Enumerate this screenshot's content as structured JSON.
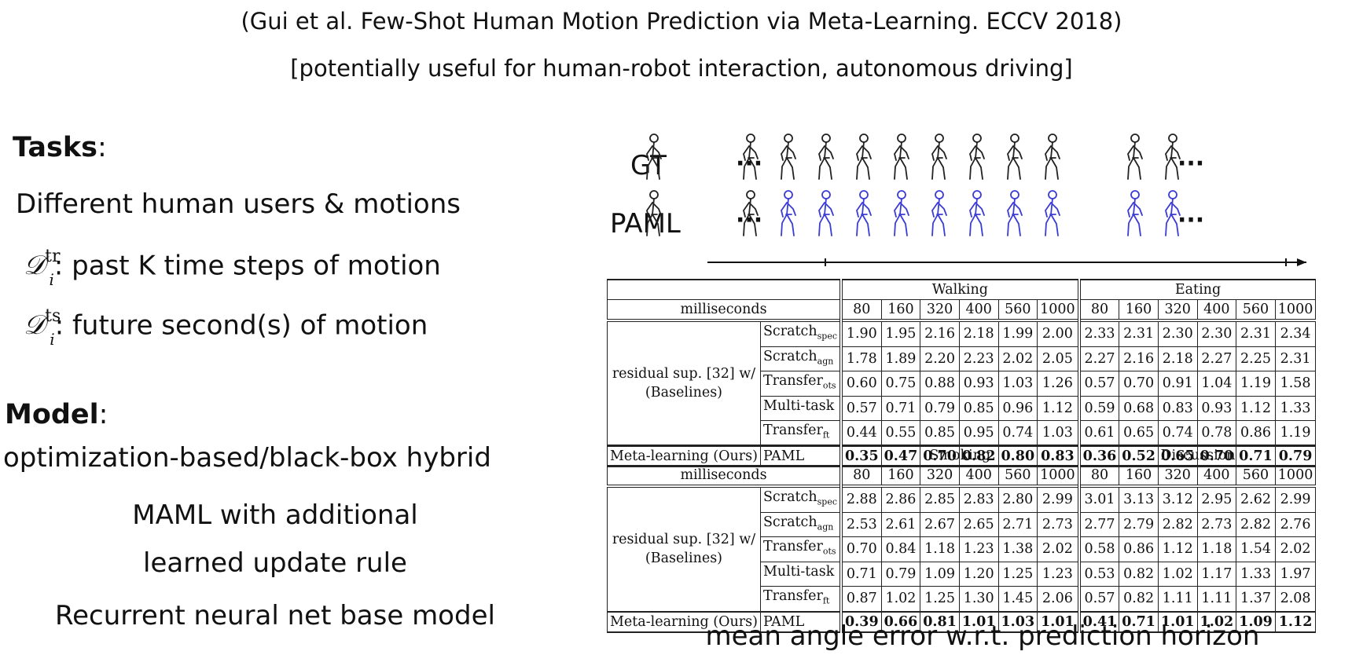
{
  "header": {
    "citation": "(Gui et al. Few-Shot Human Motion Prediction via Meta-Learning. ECCV 2018)",
    "subtitle": "[potentially useful for human-robot interaction, autonomous driving]"
  },
  "tasks": {
    "heading": "Tasks",
    "colon": ":",
    "description": "Different human users & motions",
    "d_symbol": "𝒟",
    "d_sub": "i",
    "dtr_sup": "tr",
    "dtr_text": ": past K time steps of motion",
    "dts_sup": "ts",
    "dts_text": ": future second(s) of motion"
  },
  "model": {
    "heading": "Model",
    "colon": ":",
    "type": "optimization-based/black-box hybrid",
    "maml_line1": "MAML with additional",
    "maml_line2": "learned update rule",
    "base": "Recurrent neural net base model"
  },
  "figure": {
    "gt_label": "GT",
    "paml_label": "PAML",
    "ellipsis": "···"
  },
  "table1": {
    "groups": [
      "Walking",
      "Eating"
    ],
    "ms_label": "milliseconds",
    "horizons": [
      "80",
      "160",
      "320",
      "400",
      "560",
      "1000",
      "80",
      "160",
      "320",
      "400",
      "560",
      "1000"
    ],
    "baseline_label_1": "residual sup. [32] w/",
    "baseline_label_2": "(Baselines)",
    "rows": [
      {
        "method": "Scratch",
        "sub": "spec",
        "values": [
          "1.90",
          "1.95",
          "2.16",
          "2.18",
          "1.99",
          "2.00",
          "2.33",
          "2.31",
          "2.30",
          "2.30",
          "2.31",
          "2.34"
        ]
      },
      {
        "method": "Scratch",
        "sub": "agn",
        "values": [
          "1.78",
          "1.89",
          "2.20",
          "2.23",
          "2.02",
          "2.05",
          "2.27",
          "2.16",
          "2.18",
          "2.27",
          "2.25",
          "2.31"
        ]
      },
      {
        "method": "Transfer",
        "sub": "ots",
        "values": [
          "0.60",
          "0.75",
          "0.88",
          "0.93",
          "1.03",
          "1.26",
          "0.57",
          "0.70",
          "0.91",
          "1.04",
          "1.19",
          "1.58"
        ]
      },
      {
        "method": "Multi-task",
        "sub": "",
        "values": [
          "0.57",
          "0.71",
          "0.79",
          "0.85",
          "0.96",
          "1.12",
          "0.59",
          "0.68",
          "0.83",
          "0.93",
          "1.12",
          "1.33"
        ]
      },
      {
        "method": "Transfer",
        "sub": "ft",
        "values": [
          "0.44",
          "0.55",
          "0.85",
          "0.95",
          "0.74",
          "1.03",
          "0.61",
          "0.65",
          "0.74",
          "0.78",
          "0.86",
          "1.19"
        ]
      }
    ],
    "ours_label": "Meta-learning (Ours)",
    "ours_method": "PAML",
    "ours_values": [
      "0.35",
      "0.47",
      "0.70",
      "0.82",
      "0.80",
      "0.83",
      "0.36",
      "0.52",
      "0.65",
      "0.70",
      "0.71",
      "0.79"
    ]
  },
  "table2": {
    "groups": [
      "Smoking",
      "Discussion"
    ],
    "ms_label": "milliseconds",
    "horizons": [
      "80",
      "160",
      "320",
      "400",
      "560",
      "1000",
      "80",
      "160",
      "320",
      "400",
      "560",
      "1000"
    ],
    "baseline_label_1": "residual sup. [32] w/",
    "baseline_label_2": "(Baselines)",
    "rows": [
      {
        "method": "Scratch",
        "sub": "spec",
        "values": [
          "2.88",
          "2.86",
          "2.85",
          "2.83",
          "2.80",
          "2.99",
          "3.01",
          "3.13",
          "3.12",
          "2.95",
          "2.62",
          "2.99"
        ]
      },
      {
        "method": "Scratch",
        "sub": "agn",
        "values": [
          "2.53",
          "2.61",
          "2.67",
          "2.65",
          "2.71",
          "2.73",
          "2.77",
          "2.79",
          "2.82",
          "2.73",
          "2.82",
          "2.76"
        ]
      },
      {
        "method": "Transfer",
        "sub": "ots",
        "values": [
          "0.70",
          "0.84",
          "1.18",
          "1.23",
          "1.38",
          "2.02",
          "0.58",
          "0.86",
          "1.12",
          "1.18",
          "1.54",
          "2.02"
        ]
      },
      {
        "method": "Multi-task",
        "sub": "",
        "values": [
          "0.71",
          "0.79",
          "1.09",
          "1.20",
          "1.25",
          "1.23",
          "0.53",
          "0.82",
          "1.02",
          "1.17",
          "1.33",
          "1.97"
        ]
      },
      {
        "method": "Transfer",
        "sub": "ft",
        "values": [
          "0.87",
          "1.02",
          "1.25",
          "1.30",
          "1.45",
          "2.06",
          "0.57",
          "0.82",
          "1.11",
          "1.11",
          "1.37",
          "2.08"
        ]
      }
    ],
    "ours_label": "Meta-learning (Ours)",
    "ours_method": "PAML",
    "ours_values": [
      "0.39",
      "0.66",
      "0.81",
      "1.01",
      "1.03",
      "1.01",
      "0.41",
      "0.71",
      "1.01",
      "1.02",
      "1.09",
      "1.12"
    ]
  },
  "caption": "mean angle error w.r.t. prediction horizon",
  "colors": {
    "prediction_skeleton": "#3b3bd6",
    "ground_truth_skeleton": "#222222"
  }
}
